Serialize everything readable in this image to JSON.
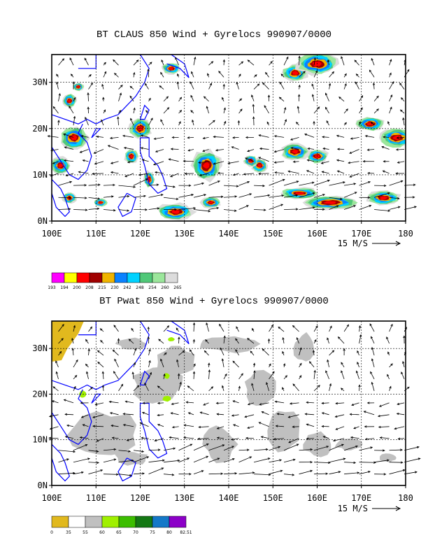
{
  "panels": [
    {
      "title": "BT CLAUS 850 Wind + Gyrelocs 990907/0000",
      "x_ticks": [
        "100E",
        "110E",
        "120E",
        "130E",
        "140E",
        "150E",
        "160E",
        "170E",
        "180"
      ],
      "y_ticks": [
        "0N",
        "10N",
        "20N",
        "30N"
      ],
      "vector_ref": "15 M/S",
      "colorbar": {
        "colors": [
          "#ff00ff",
          "#ffff00",
          "#ff0000",
          "#a00000",
          "#f0b400",
          "#0a82ff",
          "#00d2ff",
          "#50c878",
          "#9be69b",
          "#dcdcdc"
        ],
        "labels": [
          "193",
          "194",
          "200",
          "208",
          "215",
          "230",
          "242",
          "248",
          "254",
          "260",
          "265"
        ]
      }
    },
    {
      "title": "BT Pwat 850 Wind + Gyrelocs 990907/0000",
      "x_ticks": [
        "100E",
        "110E",
        "120E",
        "130E",
        "140E",
        "150E",
        "160E",
        "170E",
        "180"
      ],
      "y_ticks": [
        "0N",
        "10N",
        "20N",
        "30N"
      ],
      "vector_ref": "15 M/S",
      "colorbar": {
        "colors": [
          "#e1b91e",
          "#ffffff",
          "#c0c0c0",
          "#a0f000",
          "#3cbe00",
          "#147814",
          "#1478c8",
          "#8c00c8"
        ],
        "labels": [
          "0",
          "35",
          "55",
          "60",
          "65",
          "70",
          "75",
          "80",
          "82.51"
        ]
      }
    }
  ],
  "map": {
    "lon_range": [
      100,
      180
    ],
    "lat_range": [
      0,
      36
    ],
    "grid": "dashed"
  }
}
